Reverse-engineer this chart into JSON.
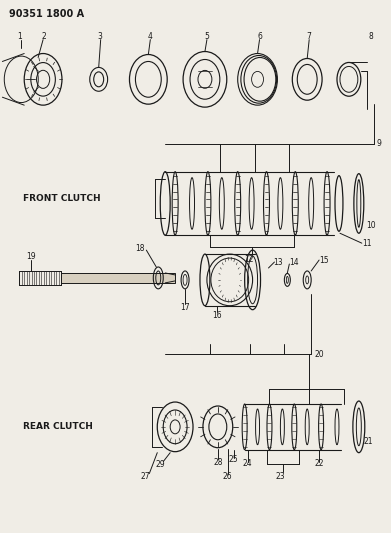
{
  "title": "90351 1800 A",
  "front_clutch_label": "FRONT CLUTCH",
  "rear_clutch_label": "REAR CLUTCH",
  "bg_color": "#f0ede6",
  "line_color": "#1a1a1a",
  "fig_width": 3.91,
  "fig_height": 5.33,
  "dpi": 100,
  "part_labels": {
    "top_row": [
      "1",
      "2",
      "3",
      "4",
      "5",
      "6",
      "7",
      "8"
    ],
    "front_pack": [
      "9",
      "10",
      "11",
      "12"
    ],
    "shaft": [
      "13",
      "14",
      "15",
      "16",
      "17",
      "18",
      "19"
    ],
    "rear_pack": [
      "20",
      "21",
      "22",
      "23",
      "24",
      "25",
      "26",
      "27",
      "28",
      "29"
    ]
  }
}
